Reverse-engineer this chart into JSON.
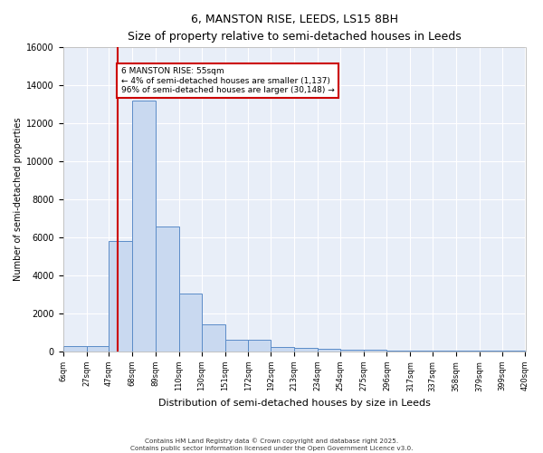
{
  "title": "6, MANSTON RISE, LEEDS, LS15 8BH",
  "subtitle": "Size of property relative to semi-detached houses in Leeds",
  "xlabel": "Distribution of semi-detached houses by size in Leeds",
  "ylabel": "Number of semi-detached properties",
  "bin_edges": [
    6,
    27,
    47,
    68,
    89,
    110,
    130,
    151,
    172,
    192,
    213,
    234,
    254,
    275,
    296,
    317,
    337,
    358,
    379,
    399,
    420
  ],
  "bin_counts": [
    300,
    300,
    5800,
    13200,
    6600,
    3050,
    1450,
    600,
    600,
    250,
    200,
    150,
    100,
    100,
    50,
    50,
    50,
    50,
    50,
    50
  ],
  "bar_color": "#c9d9f0",
  "bar_edge_color": "#5b8cc8",
  "property_size": 55,
  "property_label": "6 MANSTON RISE: 55sqm",
  "pct_smaller": 4,
  "pct_larger": 96,
  "n_smaller": 1137,
  "n_larger": 30148,
  "vline_color": "#cc0000",
  "annotation_box_color": "#cc0000",
  "ylim": [
    0,
    16000
  ],
  "yticks": [
    0,
    2000,
    4000,
    6000,
    8000,
    10000,
    12000,
    14000,
    16000
  ],
  "background_color": "#e8eef8",
  "grid_color": "white",
  "footer_line1": "Contains HM Land Registry data © Crown copyright and database right 2025.",
  "footer_line2": "Contains public sector information licensed under the Open Government Licence v3.0."
}
